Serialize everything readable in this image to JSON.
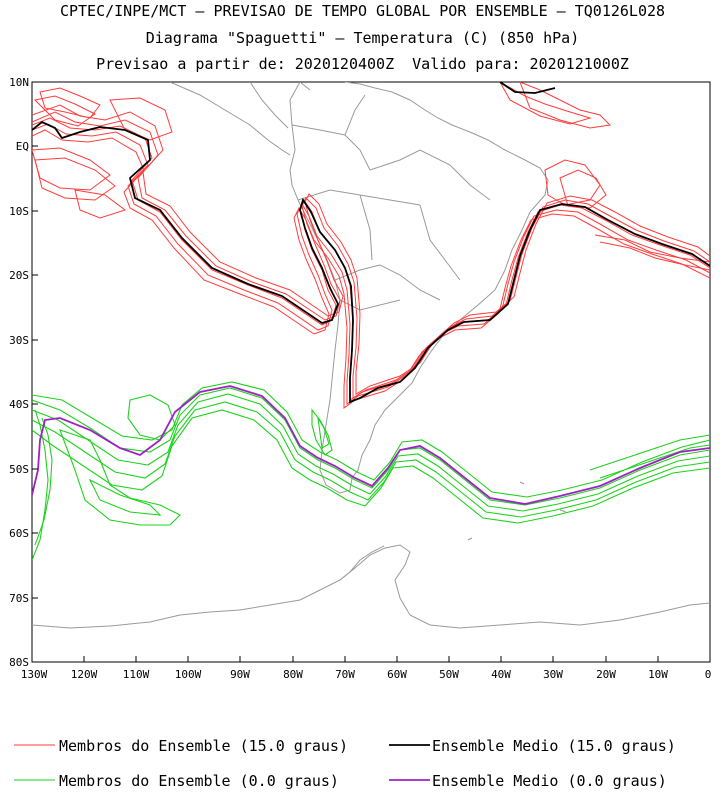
{
  "titles": {
    "line1": "CPTEC/INPE/MCT — PREVISAO DE TEMPO GLOBAL POR ENSEMBLE — TQ0126L028",
    "line2": "Diagrama \"Spaguetti\" — Temperatura (C) (850 hPa)",
    "line3": "Previsao a partir de: 2020120400Z  Valido para: 2020121000Z"
  },
  "axes": {
    "lat_labels": [
      "10N",
      "EQ",
      "10S",
      "20S",
      "30S",
      "40S",
      "50S",
      "60S",
      "70S",
      "80S"
    ],
    "lon_labels": [
      "130W",
      "120W",
      "110W",
      "100W",
      "90W",
      "80W",
      "70W",
      "60W",
      "50W",
      "40W",
      "30W",
      "20W",
      "10W",
      "0"
    ]
  },
  "legend": {
    "members_15": "Membros do Ensemble (15.0 graus)",
    "mean_15": "Ensemble Medio (15.0 graus)",
    "members_0": "Membros do Ensemble (0.0 graus)",
    "mean_0": "Ensemble Medio (0.0 graus)"
  },
  "colors": {
    "members_15": "#ff3c3c",
    "mean_15": "#000000",
    "members_0": "#1ed21e",
    "mean_0": "#a020c8",
    "coast": "#9a9a9a"
  }
}
